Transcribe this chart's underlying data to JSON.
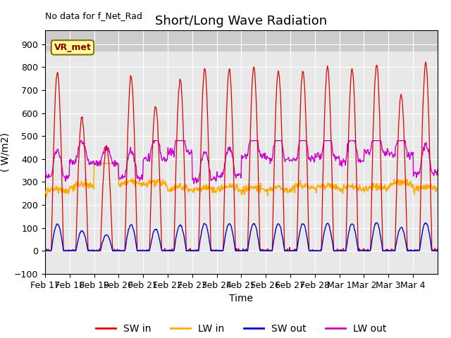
{
  "title": "Short/Long Wave Radiation",
  "ylabel": "( W/m2)",
  "xlabel": "Time",
  "top_left_text": "No data for f_Net_Rad",
  "station_label": "VR_met",
  "ylim": [
    -100,
    960
  ],
  "yticks": [
    -100,
    0,
    100,
    200,
    300,
    400,
    500,
    600,
    700,
    800,
    900
  ],
  "x_labels": [
    "Feb 17",
    "Feb 18",
    "Feb 19",
    "Feb 20",
    "Feb 21",
    "Feb 22",
    "Feb 23",
    "Feb 24",
    "Feb 25",
    "Feb 26",
    "Feb 27",
    "Feb 28",
    "Mar 1",
    "Mar 2",
    "Mar 3",
    "Mar 4"
  ],
  "colors": {
    "SW_in": "#dd0000",
    "LW_in": "#ffaa00",
    "SW_out": "#0000cc",
    "LW_out": "#cc00cc",
    "plot_bg": "#e8e8e8"
  },
  "legend_entries": [
    "SW in",
    "LW in",
    "SW out",
    "LW out"
  ],
  "title_fontsize": 13,
  "label_fontsize": 10,
  "tick_fontsize": 9,
  "sw_in_peaks": [
    780,
    580,
    455,
    760,
    630,
    750,
    790,
    790,
    800,
    785,
    785,
    800,
    790,
    810,
    680,
    820
  ],
  "lw_in_base": 255,
  "lw_out_base": 310,
  "lw_day_offsets_in": [
    0,
    20,
    50,
    30,
    30,
    10,
    5,
    10,
    5,
    5,
    15,
    15,
    10,
    10,
    30,
    10
  ],
  "lw_day_offsets_out": [
    10,
    80,
    70,
    10,
    90,
    120,
    0,
    20,
    100,
    90,
    90,
    100,
    80,
    120,
    110,
    30
  ]
}
